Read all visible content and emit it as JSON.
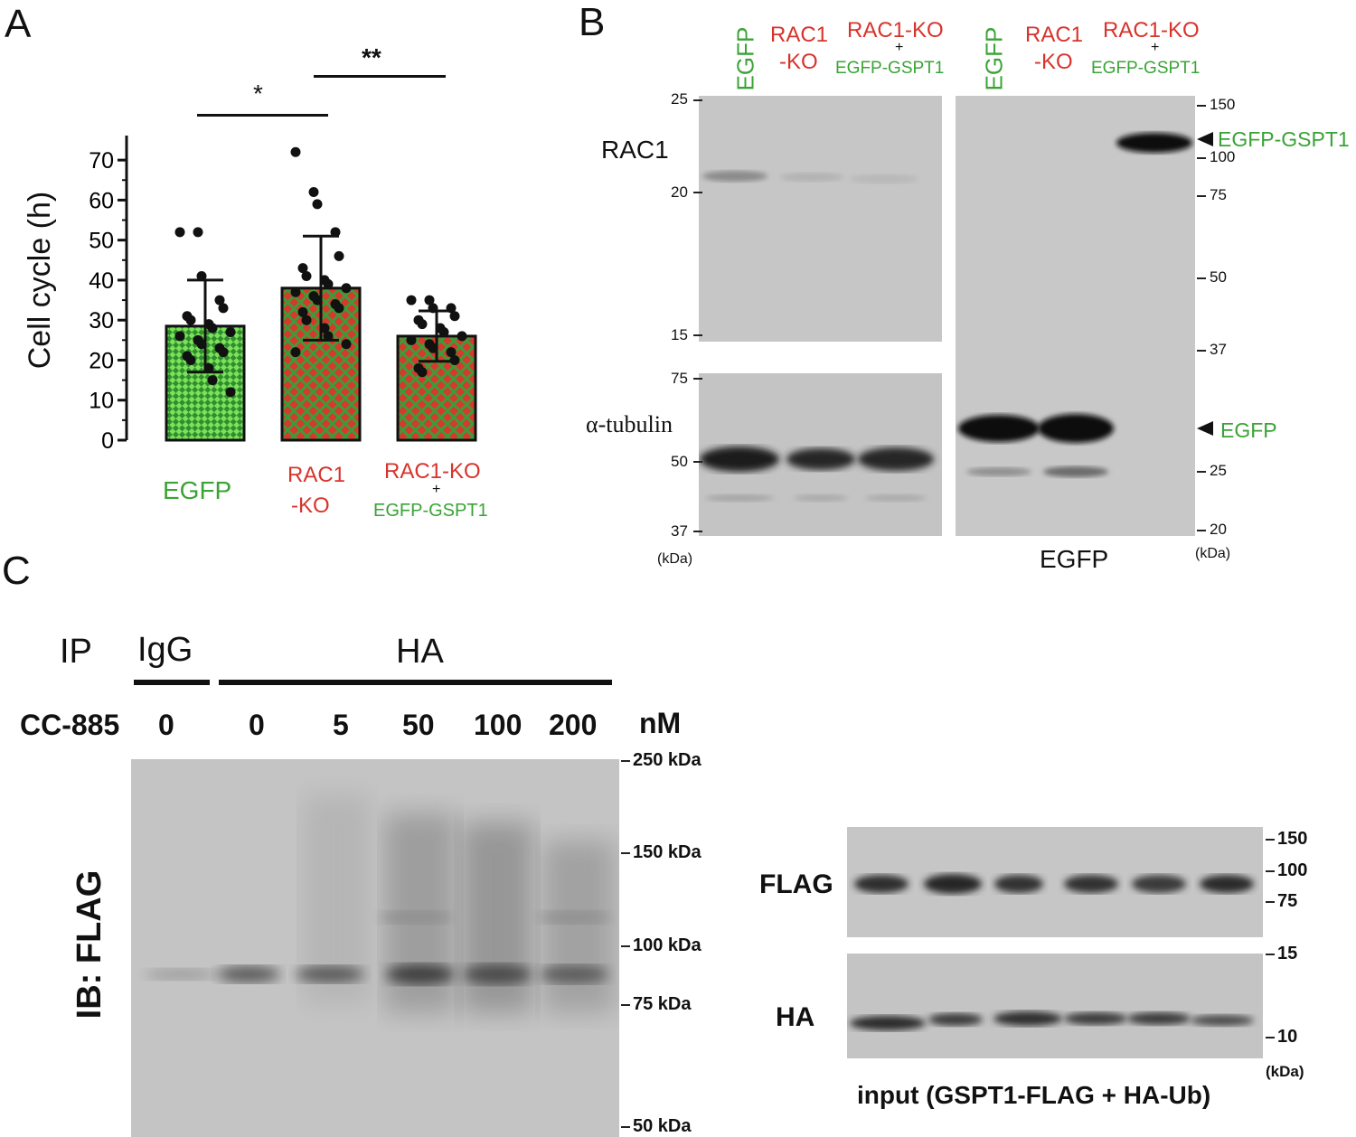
{
  "panel_a": {
    "letter": "A",
    "ylabel": "Cell cycle (h)",
    "sig1": "*",
    "sig2": "**",
    "group_labels": [
      {
        "lines": [
          "EGFP"
        ],
        "color": "green"
      },
      {
        "lines": [
          "RAC1",
          "-KO"
        ],
        "color": "red"
      },
      {
        "lines": [
          "RAC1-KO",
          "+",
          "EGFP-GSPT1"
        ],
        "colors": [
          "red",
          "black",
          "green"
        ]
      }
    ]
  },
  "chart_data": {
    "type": "bar",
    "categories": [
      "EGFP",
      "RAC1-KO",
      "RAC1-KO + EGFP-GSPT1"
    ],
    "values": [
      28.5,
      38,
      26
    ],
    "error": [
      11.5,
      13,
      6.3
    ],
    "ylabel": "Cell cycle (h)",
    "ylim": [
      0,
      75
    ],
    "yticks": [
      0,
      10,
      20,
      30,
      40,
      50,
      60,
      70
    ],
    "points": [
      [
        52,
        52,
        41,
        35,
        33,
        31,
        30,
        29,
        28,
        27,
        26,
        25,
        24,
        23,
        22,
        21,
        20,
        18,
        15,
        12
      ],
      [
        72,
        62,
        59,
        52,
        46,
        43,
        41,
        40,
        39,
        38,
        37,
        36,
        35,
        34,
        33,
        32,
        30,
        28,
        26,
        24,
        22
      ],
      [
        35,
        35,
        33,
        33,
        31,
        30,
        29,
        28,
        27,
        26,
        25,
        24,
        23,
        22,
        20,
        18,
        17
      ]
    ],
    "annotations": [
      "*",
      "**"
    ]
  },
  "panel_b": {
    "letter": "B",
    "lanes_left": [
      {
        "lines": [
          "EGFP"
        ],
        "color": "green",
        "vertical": true
      },
      {
        "lines": [
          "RAC1",
          "-KO"
        ],
        "color": "red"
      },
      {
        "lines": [
          "RAC1-KO",
          "+",
          "EGFP-GSPT1"
        ],
        "colors": [
          "red",
          "black",
          "green"
        ]
      }
    ],
    "lanes_right": [
      {
        "lines": [
          "EGFP"
        ],
        "color": "green",
        "vertical": true
      },
      {
        "lines": [
          "RAC1",
          "-KO"
        ],
        "color": "red"
      },
      {
        "lines": [
          "RAC1-KO",
          "+",
          "EGFP-GSPT1"
        ],
        "colors": [
          "red",
          "black",
          "green"
        ]
      }
    ],
    "rac1_label": "RAC1",
    "tubulin_label": "α-tubulin",
    "left_markers_top": [
      "25",
      "20",
      "15"
    ],
    "left_markers_bottom": [
      "75",
      "50",
      "37"
    ],
    "left_unit": "(kDa)",
    "right_markers": [
      "150",
      "100",
      "75",
      "50",
      "37",
      "25",
      "20"
    ],
    "right_unit": "(kDa)",
    "right_blot_title": "EGFP",
    "arrow_egfp_gspt1": "EGFP-GSPT1",
    "arrow_egfp": "EGFP"
  },
  "panel_c": {
    "letter": "C",
    "ip_label": "IP",
    "igg_label": "IgG",
    "ha_label": "HA",
    "drug_label": "CC-885",
    "concentrations": [
      "0",
      "0",
      "5",
      "50",
      "100",
      "200"
    ],
    "unit": "nM",
    "ib_label": "IB: FLAG",
    "markers": [
      "250 kDa",
      "150 kDa",
      "100 kDa",
      "75 kDa",
      "50 kDa"
    ],
    "flag_label": "FLAG",
    "ha_blot_label": "HA",
    "flag_markers": [
      "150",
      "100",
      "75"
    ],
    "ha_markers": [
      "15",
      "10"
    ],
    "input_unit": "(kDa)",
    "input_title": "input (GSPT1-FLAG + HA-Ub)"
  }
}
